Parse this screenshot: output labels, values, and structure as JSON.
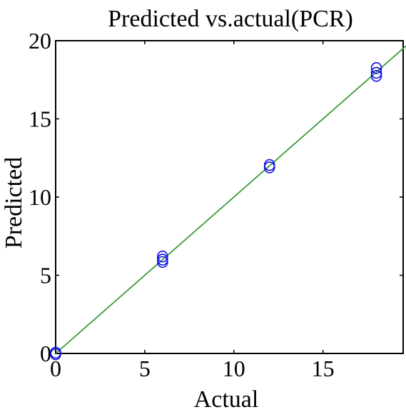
{
  "chart_data": {
    "type": "scatter",
    "title": "Predicted vs.actual(PCR)",
    "xlabel": "Actual",
    "ylabel": "Predicted",
    "xlim": [
      0,
      19.5
    ],
    "ylim": [
      0,
      20
    ],
    "x_ticks": [
      0,
      5,
      10,
      15
    ],
    "y_ticks": [
      0,
      5,
      10,
      15,
      20
    ],
    "grid": false,
    "legend": "none",
    "series": [
      {
        "marker": "open-circle",
        "color": "#1010e0",
        "points": [
          {
            "x": 0,
            "y": 0.05
          },
          {
            "x": 0,
            "y": -0.05
          },
          {
            "x": 6.0,
            "y": 5.85
          },
          {
            "x": 6.0,
            "y": 6.0
          },
          {
            "x": 6.0,
            "y": 6.2
          },
          {
            "x": 12.0,
            "y": 11.9
          },
          {
            "x": 12.0,
            "y": 12.05
          },
          {
            "x": 18.0,
            "y": 17.75
          },
          {
            "x": 18.0,
            "y": 17.95
          },
          {
            "x": 18.0,
            "y": 18.25
          }
        ]
      }
    ],
    "reference_line": {
      "type": "y=x",
      "color": "#3a9a3a",
      "x": [
        0,
        19.8
      ],
      "y": [
        0,
        19.8
      ]
    }
  }
}
